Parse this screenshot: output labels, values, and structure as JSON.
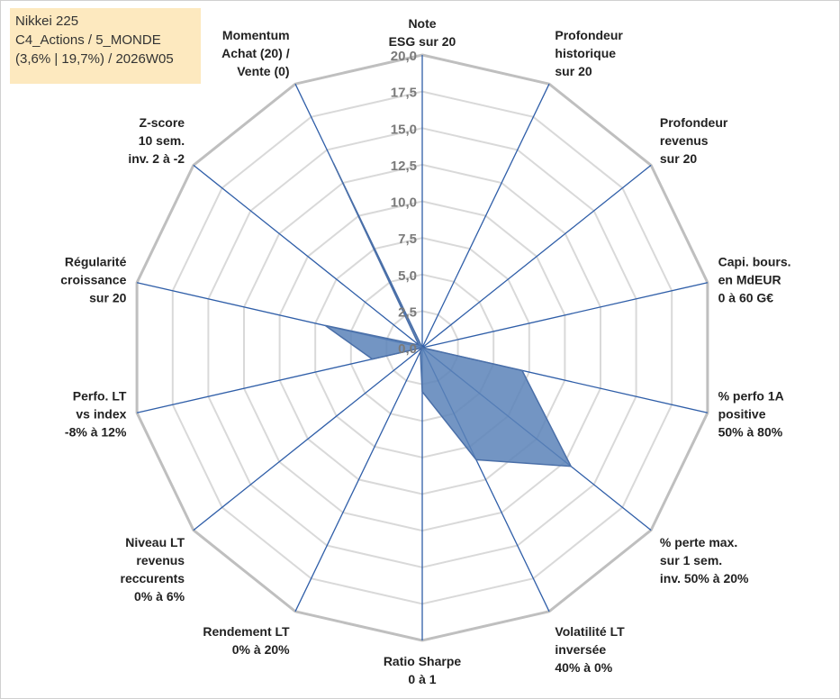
{
  "info": {
    "line1": "Nikkei 225",
    "line2": "C4_Actions / 5_MONDE",
    "line3": "(3,6% | 19,7%) / 2026W05"
  },
  "chart_data": {
    "type": "radar",
    "rmin": 0,
    "rmax": 20,
    "ticks": [
      "0,0",
      "2,5",
      "5,0",
      "7,5",
      "10,0",
      "12,5",
      "15,0",
      "17,5",
      "20,0"
    ],
    "axes": [
      [
        "Note",
        "ESG sur 20"
      ],
      [
        "Profondeur",
        "historique",
        "sur 20"
      ],
      [
        "Profondeur",
        "revenus",
        "sur 20"
      ],
      [
        "Capi. bours.",
        "en MdEUR",
        "0 à 60 G€"
      ],
      [
        "% perfo 1A",
        "positive",
        "50% à 80%"
      ],
      [
        "% perte max.",
        "sur 1 sem.",
        "inv. 50% à 20%"
      ],
      [
        "Volatilité LT",
        "inversée",
        "40% à 0%"
      ],
      [
        "Ratio Sharpe",
        "0 à 1"
      ],
      [
        "Rendement LT",
        "0% à 20%"
      ],
      [
        "Niveau LT",
        "revenus",
        "reccurents",
        "0% à 6%"
      ],
      [
        "Perfo. LT",
        "vs index",
        "-8% à 12%"
      ],
      [
        "Régularité",
        "croissance",
        "sur 20"
      ],
      [
        "Z-score",
        "10 sem.",
        "inv. 2 à -2"
      ],
      [
        "Momentum",
        "Achat (20) /",
        "Vente (0)"
      ]
    ],
    "values": [
      0,
      0,
      0,
      0,
      7.0,
      13.0,
      8.5,
      3.0,
      0.3,
      0,
      3.5,
      6.8,
      0.3,
      14.0
    ],
    "grid": true,
    "fill_color": "#5b82b8",
    "line_color": "#4a6fa8"
  }
}
